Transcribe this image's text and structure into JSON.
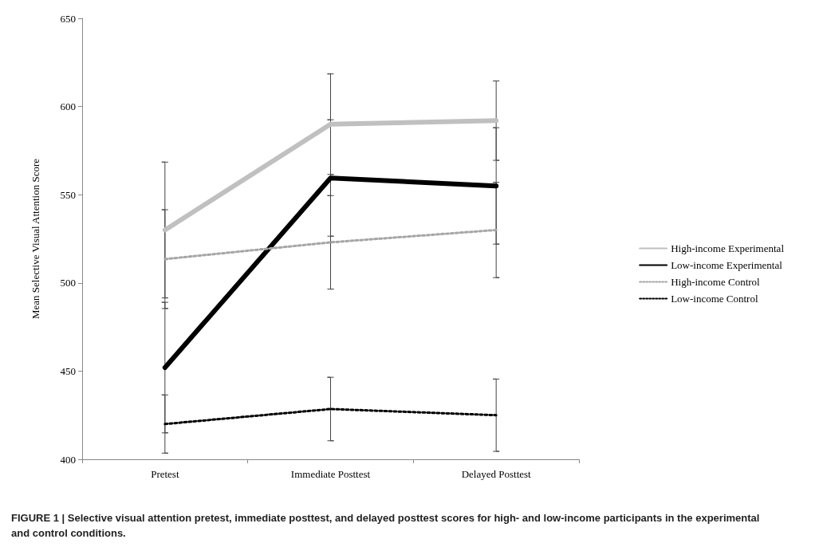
{
  "chart_data": {
    "type": "line",
    "ylabel": "Mean Selective Visual Attention Score",
    "categories": [
      "Pretest",
      "Immediate Posttest",
      "Delayed Posttest"
    ],
    "series": [
      {
        "name": "High-income Experimental",
        "color": "#c0c0c0",
        "line_style": "solid",
        "values": [
          530,
          590,
          592
        ],
        "errors": [
          38.5,
          28.5,
          22.5
        ]
      },
      {
        "name": "Low-income Experimental",
        "color": "#000000",
        "line_style": "solid",
        "values": [
          452,
          559.5,
          555
        ],
        "errors": [
          37,
          33,
          33
        ]
      },
      {
        "name": "High-income Control",
        "color": "#a6a6a6",
        "line_style": "dotted",
        "values": [
          513.5,
          523,
          530
        ],
        "errors": [
          28,
          26.5,
          27
        ]
      },
      {
        "name": "Low-income Control",
        "color": "#000000",
        "line_style": "dotted",
        "values": [
          420,
          428.5,
          425
        ],
        "errors": [
          16.5,
          18,
          20.5
        ]
      }
    ],
    "ylim": [
      400,
      650
    ],
    "yticks": [
      400,
      450,
      500,
      550,
      600,
      650
    ],
    "grid": false,
    "legend": "right",
    "marker": "none",
    "annotations": [
      "FIGURE 1 | Selective visual attention pretest, immediate posttest, and delayed posttest scores for high- and low-income participants in the experimental and control conditions."
    ]
  }
}
